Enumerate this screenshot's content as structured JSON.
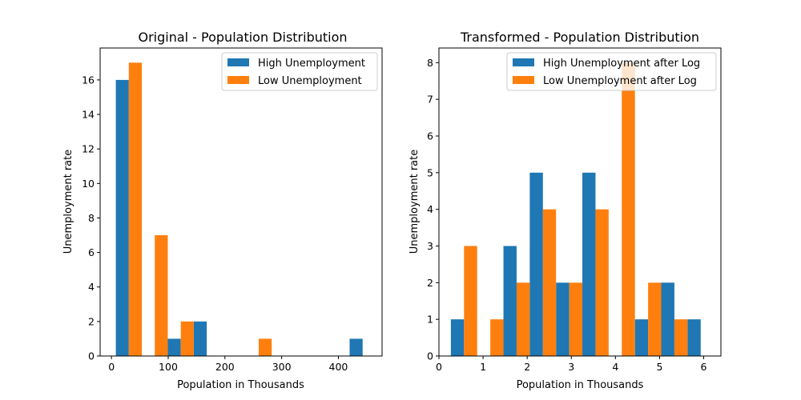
{
  "chart_data": [
    {
      "type": "bar",
      "title": "Original - Population Distribution",
      "xlabel": "Population in Thousands",
      "ylabel": "Unemployment rate",
      "xlim": [
        -20,
        477
      ],
      "ylim": [
        0,
        17.85
      ],
      "xticks": [
        0,
        100,
        200,
        300,
        400
      ],
      "yticks": [
        0,
        2,
        4,
        6,
        8,
        10,
        12,
        14,
        16
      ],
      "bin_edges": [
        7.68,
        53.47,
        99.26,
        145.05,
        190.85,
        236.64,
        282.43,
        328.22,
        374.01,
        419.81,
        465.6
      ],
      "legend_position": "upper right",
      "grid": false,
      "series": [
        {
          "name": "High Unemployment",
          "color": "#1f77b4",
          "values": [
            16,
            0,
            1,
            2,
            0,
            0,
            0,
            0,
            0,
            1
          ]
        },
        {
          "name": "Low Unemployment",
          "color": "#ff7f0e",
          "values": [
            17,
            7,
            2,
            0,
            0,
            1,
            0,
            0,
            0,
            0
          ]
        }
      ]
    },
    {
      "type": "bar",
      "title": "Transformed - Population Distribution",
      "xlabel": "Population in Thousands",
      "ylabel": "Unemployment rate",
      "xlim": [
        0,
        6.39
      ],
      "ylim": [
        0,
        8.4
      ],
      "xticks": [
        0,
        1,
        2,
        3,
        4,
        5,
        6
      ],
      "yticks": [
        0,
        1,
        2,
        3,
        4,
        5,
        6,
        7,
        8
      ],
      "bin_edges": [
        0.27,
        0.866,
        1.462,
        2.058,
        2.654,
        3.25,
        3.846,
        4.442,
        5.038,
        5.634,
        6.23
      ],
      "legend_position": "upper right",
      "grid": false,
      "series": [
        {
          "name": "High Unemployment after Log",
          "color": "#1f77b4",
          "values": [
            1,
            0,
            3,
            5,
            2,
            5,
            0,
            1,
            2,
            1
          ]
        },
        {
          "name": "Low Unemployment after Log",
          "color": "#ff7f0e",
          "values": [
            3,
            1,
            2,
            4,
            2,
            4,
            8,
            2,
            1,
            0
          ]
        }
      ]
    }
  ]
}
